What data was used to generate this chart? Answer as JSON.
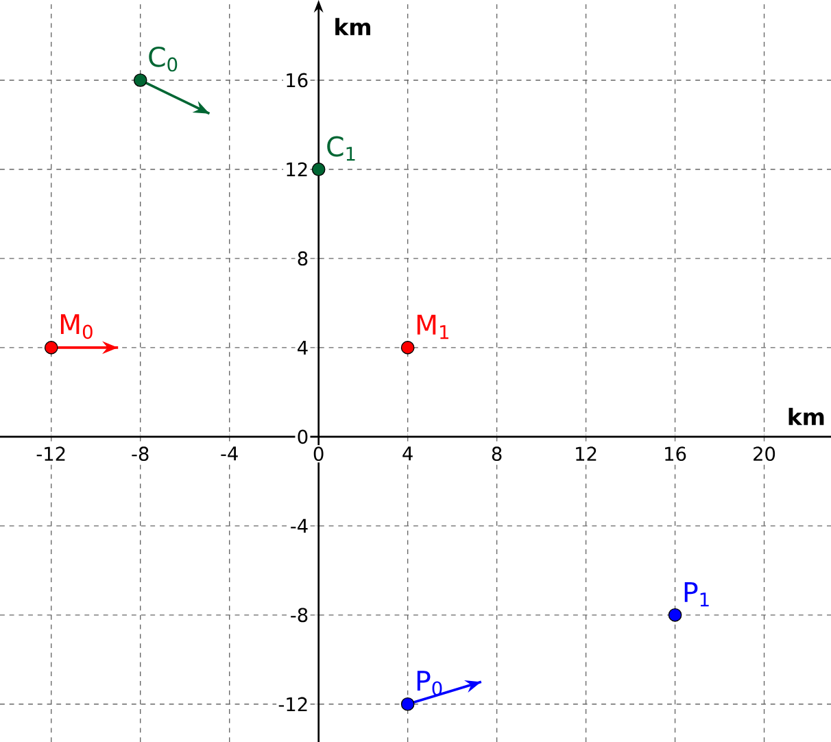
{
  "chart_data": {
    "type": "scatter",
    "xlabel": "km",
    "ylabel": "km",
    "xlim": [
      -14.3,
      23
    ],
    "ylim": [
      -13.7,
      19.6
    ],
    "xticks": [
      -12,
      -8,
      -4,
      0,
      4,
      8,
      12,
      16,
      20
    ],
    "yticks": [
      -12,
      -8,
      -4,
      0,
      4,
      8,
      12,
      16
    ],
    "grid": true,
    "marker": "circle",
    "series": [
      {
        "color": "#006633",
        "x": [
          -8,
          0
        ],
        "values": [
          16,
          12
        ]
      },
      {
        "color": "#ff0000",
        "x": [
          -12,
          4
        ],
        "values": [
          4,
          4
        ]
      },
      {
        "color": "#0000ff",
        "x": [
          4,
          16
        ],
        "values": [
          -12,
          -8
        ]
      },
      {
        "type": "line",
        "marker": "none",
        "color": "#006633",
        "x": [
          -8,
          -4.9
        ],
        "values": [
          16,
          14.5
        ]
      },
      {
        "type": "line",
        "marker": "none",
        "color": "#ff0000",
        "x": [
          -12,
          -9
        ],
        "values": [
          4,
          4
        ]
      },
      {
        "type": "line",
        "marker": "none",
        "color": "#0000ff",
        "x": [
          4,
          7.3
        ],
        "values": [
          -12,
          -11
        ]
      }
    ],
    "annotations": [
      {
        "text": "C$_{0}$",
        "x": -8,
        "y": 16
      },
      {
        "text": "C$_{1}$",
        "x": 0,
        "y": 12
      },
      {
        "text": "M$_{0}$",
        "x": -12,
        "y": 4
      },
      {
        "text": "M$_{1}$",
        "x": 4,
        "y": 4
      },
      {
        "text": "P$_{0}$",
        "x": 4,
        "y": -12
      },
      {
        "text": "P$_{1}$",
        "x": 16,
        "y": -8
      }
    ]
  }
}
